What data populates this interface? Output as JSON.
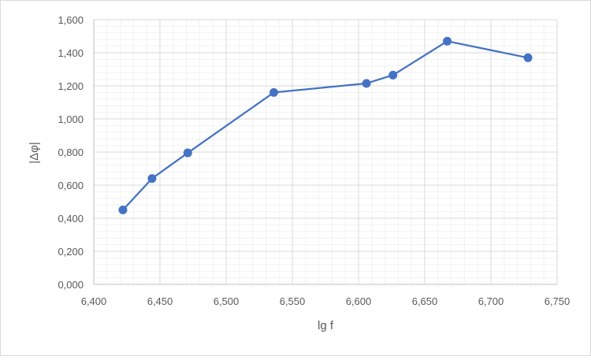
{
  "chart_data": {
    "type": "scatter",
    "mode": "lines+markers",
    "xlabel": "lg f",
    "ylabel": "|Δφ|",
    "xlim": [
      6.4,
      6.75
    ],
    "ylim": [
      0.0,
      1.6
    ],
    "x_ticks": [
      "6,400",
      "6,450",
      "6,500",
      "6,550",
      "6,600",
      "6,650",
      "6,700",
      "6,750"
    ],
    "y_ticks": [
      "0,000",
      "0,200",
      "0,400",
      "0,600",
      "0,800",
      "1,000",
      "1,200",
      "1,400",
      "1,600"
    ],
    "grid": "major and minor",
    "legend": "none",
    "color": "#4472c4",
    "series": [
      {
        "x": [
          6.422,
          6.444,
          6.471,
          6.536,
          6.606,
          6.626,
          6.667,
          6.728
        ],
        "y": [
          0.45,
          0.64,
          0.795,
          1.16,
          1.215,
          1.265,
          1.47,
          1.37
        ]
      }
    ]
  }
}
